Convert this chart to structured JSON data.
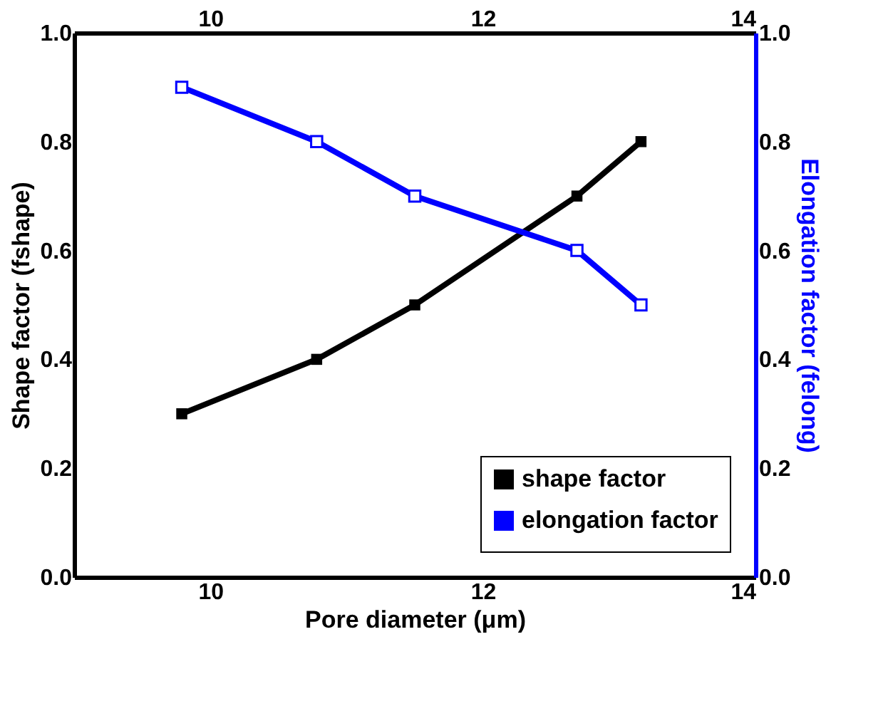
{
  "chart_data": {
    "type": "line",
    "xlabel": "Pore diameter (μm)",
    "ylabel": "Shape factor (fshape)",
    "y2label": "Elongation factor (felong)",
    "x": [
      9.79,
      10.78,
      11.5,
      12.69,
      13.16
    ],
    "series": [
      {
        "name": "shape factor",
        "color": "#000000",
        "values": [
          0.3,
          0.4,
          0.5,
          0.7,
          0.8
        ]
      },
      {
        "name": "elongation factor",
        "color": "#0000ff",
        "values": [
          0.9,
          0.8,
          0.7,
          0.6,
          0.5
        ],
        "axis": "y2"
      }
    ],
    "xlim": [
      9,
      14
    ],
    "xticks": [
      10,
      12,
      14
    ],
    "x2lim": [
      9,
      14
    ],
    "x2ticks": [
      10,
      12,
      14
    ],
    "ylim": [
      0,
      1
    ],
    "yticks": [
      {
        "value": 0,
        "label": "0.0"
      },
      0.2,
      0.4,
      0.6,
      0.8,
      {
        "value": 1,
        "label": "1.0"
      }
    ],
    "y2lim": [
      0,
      1
    ],
    "y2ticks": [
      {
        "value": 0,
        "label": "0.0"
      },
      0.2,
      0.4,
      0.6,
      0.8,
      {
        "value": 1,
        "label": "1.0"
      }
    ],
    "legend": "bottom right",
    "marker": "square",
    "line_style": "solid",
    "grid": false
  }
}
